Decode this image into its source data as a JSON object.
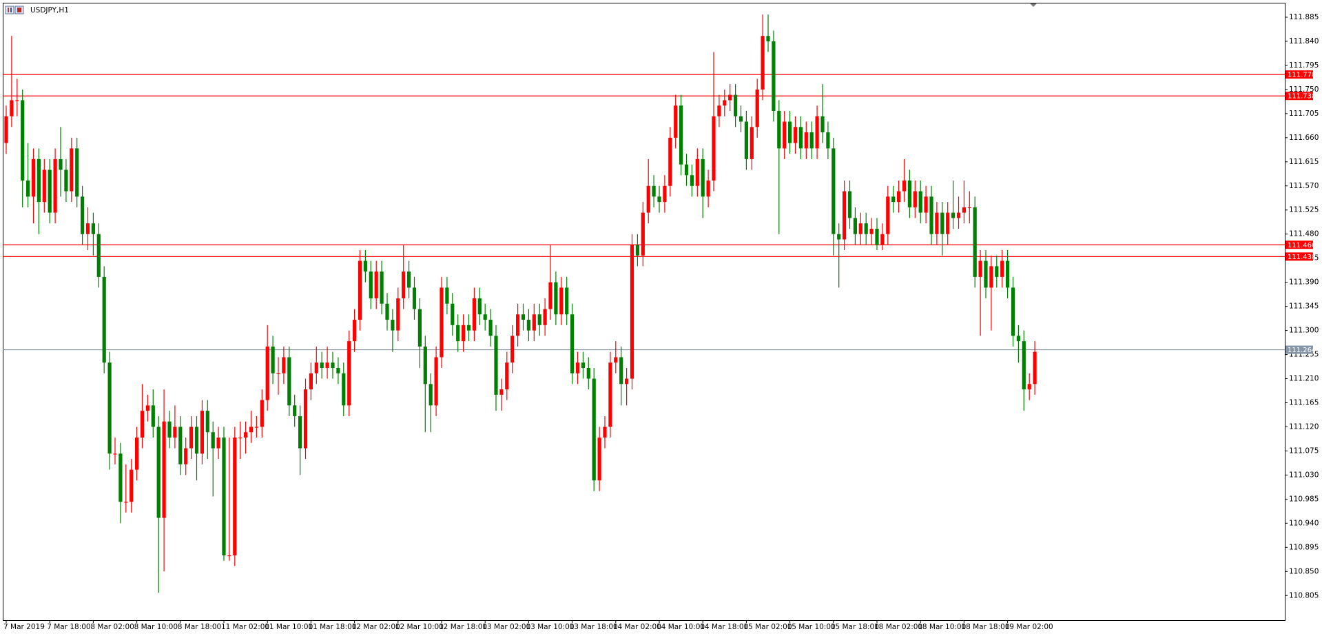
{
  "chart_data": {
    "type": "candlestick",
    "title": "USDJPY,H1",
    "up_color": "#ff0000",
    "down_color": "#008000",
    "level_color": "#ff0000",
    "current_color": "#8395a7",
    "ylim": [
      110.759,
      111.912
    ],
    "yticks": [
      111.885,
      {
        "value": 111.84,
        "label": "111.840"
      },
      111.795,
      {
        "value": 111.75,
        "label": "111.750"
      },
      111.705,
      {
        "value": 111.66,
        "label": "111.660"
      },
      111.615,
      {
        "value": 111.57,
        "label": "111.570"
      },
      111.525,
      {
        "value": 111.48,
        "label": "111.480"
      },
      111.435,
      {
        "value": 111.39,
        "label": "111.390"
      },
      111.345,
      {
        "value": 111.3,
        "label": "111.300"
      },
      111.255,
      {
        "value": 111.21,
        "label": "111.210"
      },
      111.165,
      {
        "value": 111.12,
        "label": "111.120"
      },
      111.075,
      {
        "value": 111.03,
        "label": "111.030"
      },
      110.985,
      {
        "value": 110.94,
        "label": "110.940"
      },
      110.895,
      {
        "value": 110.85,
        "label": "110.850"
      },
      110.805
    ],
    "levels": [
      {
        "value": 111.778
      },
      {
        "value": 111.738
      },
      {
        "value": 111.46,
        "label": "111.460"
      },
      {
        "value": 111.438
      }
    ],
    "current_price": {
      "value": 111.264
    },
    "categories": [
      "7 Mar 2019",
      null,
      null,
      null,
      null,
      null,
      null,
      null,
      "7 Mar 18:00",
      null,
      null,
      null,
      null,
      null,
      null,
      null,
      "8 Mar 02:00",
      null,
      null,
      null,
      null,
      null,
      null,
      null,
      "8 Mar 10:00",
      null,
      null,
      null,
      null,
      null,
      null,
      null,
      "8 Mar 18:00",
      null,
      null,
      null,
      null,
      null,
      null,
      null,
      "11 Mar 02:00",
      null,
      null,
      null,
      null,
      null,
      null,
      null,
      "11 Mar 10:00",
      null,
      null,
      null,
      null,
      null,
      null,
      null,
      "11 Mar 18:00",
      null,
      null,
      null,
      null,
      null,
      null,
      null,
      "12 Mar 02:00",
      null,
      null,
      null,
      null,
      null,
      null,
      null,
      "12 Mar 10:00",
      null,
      null,
      null,
      null,
      null,
      null,
      null,
      "12 Mar 18:00",
      null,
      null,
      null,
      null,
      null,
      null,
      null,
      "13 Mar 02:00",
      null,
      null,
      null,
      null,
      null,
      null,
      null,
      "13 Mar 10:00",
      null,
      null,
      null,
      null,
      null,
      null,
      null,
      "13 Mar 18:00",
      null,
      null,
      null,
      null,
      null,
      null,
      null,
      "14 Mar 02:00",
      null,
      null,
      null,
      null,
      null,
      null,
      null,
      "14 Mar 10:00",
      null,
      null,
      null,
      null,
      null,
      null,
      null,
      "14 Mar 18:00",
      null,
      null,
      null,
      null,
      null,
      null,
      null,
      "15 Mar 02:00",
      null,
      null,
      null,
      null,
      null,
      null,
      null,
      "15 Mar 10:00",
      null,
      null,
      null,
      null,
      null,
      null,
      null,
      "15 Mar 18:00",
      null,
      null,
      null,
      null,
      null,
      null,
      null,
      "18 Mar 02:00",
      null,
      null,
      null,
      null,
      null,
      null,
      null,
      "18 Mar 10:00",
      null,
      null,
      null,
      null,
      null,
      null,
      null,
      "18 Mar 18:00",
      null,
      null,
      null,
      null,
      null,
      null,
      null,
      "19 Mar 02:00",
      null,
      null,
      null,
      null,
      null
    ],
    "open": [
      111.65,
      111.7,
      111.73,
      111.73,
      111.58,
      111.55,
      111.62,
      111.54,
      111.6,
      111.52,
      111.62,
      111.6,
      111.56,
      111.64,
      111.55,
      111.48,
      111.5,
      111.48,
      111.4,
      111.24,
      111.07,
      111.07,
      110.98,
      110.98,
      111.04,
      111.1,
      111.15,
      111.16,
      111.12,
      110.95,
      111.13,
      111.1,
      111.12,
      111.05,
      111.08,
      111.12,
      111.07,
      111.15,
      111.11,
      111.08,
      111.1,
      110.88,
      110.88,
      111.1,
      111.1,
      111.11,
      111.12,
      111.12,
      111.17,
      111.27,
      111.22,
      111.22,
      111.25,
      111.16,
      111.14,
      111.08,
      111.19,
      111.22,
      111.24,
      111.23,
      111.24,
      111.23,
      111.22,
      111.16,
      111.28,
      111.32,
      111.43,
      111.41,
      111.36,
      111.41,
      111.35,
      111.32,
      111.3,
      111.36,
      111.41,
      111.38,
      111.34,
      111.27,
      111.2,
      111.16,
      111.25,
      111.38,
      111.35,
      111.31,
      111.28,
      111.31,
      111.3,
      111.36,
      111.33,
      111.32,
      111.29,
      111.18,
      111.19,
      111.24,
      111.29,
      111.33,
      111.32,
      111.3,
      111.33,
      111.31,
      111.34,
      111.39,
      111.33,
      111.38,
      111.33,
      111.22,
      111.24,
      111.23,
      111.21,
      111.02,
      111.1,
      111.12,
      111.24,
      111.25,
      111.2,
      111.21,
      111.46,
      111.44,
      111.52,
      111.57,
      111.55,
      111.54,
      111.57,
      111.66,
      111.72,
      111.61,
      111.59,
      111.57,
      111.62,
      111.55,
      111.58,
      111.7,
      111.72,
      111.73,
      111.74,
      111.7,
      111.69,
      111.62,
      111.68,
      111.75,
      111.85,
      111.84,
      111.71,
      111.64,
      111.69,
      111.65,
      111.68,
      111.64,
      111.67,
      111.64,
      111.7,
      111.67,
      111.64,
      111.48,
      111.47,
      111.56,
      111.51,
      111.48,
      111.5,
      111.48,
      111.49,
      111.46,
      111.48,
      111.55,
      111.54,
      111.56,
      111.58,
      111.53,
      111.56,
      111.52,
      111.55,
      111.48,
      111.52,
      111.48,
      111.52,
      111.51,
      111.52,
      111.53,
      111.53,
      111.4,
      111.43,
      111.38,
      111.42,
      111.4,
      111.43,
      111.38,
      111.29,
      111.28,
      111.19,
      111.2
    ],
    "high": [
      111.72,
      111.85,
      111.77,
      111.75,
      111.65,
      111.64,
      111.64,
      111.62,
      111.62,
      111.64,
      111.68,
      111.62,
      111.66,
      111.66,
      111.57,
      111.53,
      111.52,
      111.5,
      111.42,
      111.26,
      111.1,
      111.09,
      111.05,
      111.06,
      111.12,
      111.2,
      111.18,
      111.19,
      111.14,
      111.19,
      111.15,
      111.16,
      111.14,
      111.1,
      111.14,
      111.14,
      111.17,
      111.17,
      111.13,
      111.12,
      111.12,
      111.1,
      111.12,
      111.13,
      111.13,
      111.15,
      111.14,
      111.19,
      111.31,
      111.29,
      111.25,
      111.27,
      111.27,
      111.18,
      111.16,
      111.21,
      111.24,
      111.27,
      111.26,
      111.27,
      111.26,
      111.25,
      111.24,
      111.3,
      111.34,
      111.45,
      111.45,
      111.43,
      111.43,
      111.43,
      111.37,
      111.34,
      111.38,
      111.46,
      111.43,
      111.4,
      111.36,
      111.29,
      111.22,
      111.27,
      111.4,
      111.4,
      111.37,
      111.33,
      111.33,
      111.33,
      111.38,
      111.38,
      111.35,
      111.34,
      111.31,
      111.21,
      111.26,
      111.31,
      111.35,
      111.35,
      111.34,
      111.35,
      111.35,
      111.36,
      111.46,
      111.41,
      111.4,
      111.4,
      111.35,
      111.26,
      111.26,
      111.25,
      111.23,
      111.12,
      111.14,
      111.26,
      111.28,
      111.27,
      111.23,
      111.48,
      111.48,
      111.54,
      111.62,
      111.59,
      111.57,
      111.59,
      111.68,
      111.74,
      111.74,
      111.63,
      111.61,
      111.64,
      111.64,
      111.6,
      111.82,
      111.74,
      111.75,
      111.76,
      111.76,
      111.72,
      111.71,
      111.7,
      111.77,
      111.89,
      111.89,
      111.86,
      111.73,
      111.71,
      111.71,
      111.7,
      111.7,
      111.69,
      111.69,
      111.72,
      111.76,
      111.69,
      111.66,
      111.5,
      111.58,
      111.58,
      111.53,
      111.52,
      111.52,
      111.51,
      111.51,
      111.5,
      111.57,
      111.57,
      111.58,
      111.62,
      111.6,
      111.58,
      111.58,
      111.57,
      111.57,
      111.54,
      111.54,
      111.54,
      111.58,
      111.55,
      111.58,
      111.56,
      111.55,
      111.45,
      111.45,
      111.44,
      111.44,
      111.45,
      111.45,
      111.4,
      111.31,
      111.3,
      111.22,
      111.28
    ],
    "low": [
      111.63,
      111.68,
      111.7,
      111.53,
      111.53,
      111.5,
      111.48,
      111.52,
      111.5,
      111.5,
      111.55,
      111.54,
      111.54,
      111.53,
      111.46,
      111.45,
      111.44,
      111.38,
      111.22,
      111.04,
      111.05,
      110.94,
      110.96,
      110.96,
      111.02,
      111.08,
      111.13,
      111.1,
      110.81,
      110.85,
      111.08,
      111.08,
      111.03,
      111.03,
      111.06,
      111.02,
      111.05,
      111.06,
      110.99,
      111.06,
      110.87,
      110.87,
      110.86,
      111.06,
      111.07,
      111.09,
      111.1,
      111.1,
      111.15,
      111.2,
      111.18,
      111.2,
      111.14,
      111.12,
      111.03,
      111.06,
      111.17,
      111.2,
      111.21,
      111.21,
      111.21,
      111.2,
      111.14,
      111.14,
      111.26,
      111.3,
      111.39,
      111.34,
      111.34,
      111.33,
      111.3,
      111.26,
      111.28,
      111.34,
      111.36,
      111.32,
      111.23,
      111.11,
      111.11,
      111.14,
      111.23,
      111.33,
      111.29,
      111.26,
      111.26,
      111.28,
      111.28,
      111.31,
      111.3,
      111.27,
      111.15,
      111.15,
      111.17,
      111.22,
      111.27,
      111.3,
      111.28,
      111.28,
      111.29,
      111.29,
      111.32,
      111.31,
      111.31,
      111.31,
      111.2,
      111.2,
      111.21,
      111.19,
      111.0,
      111.0,
      111.08,
      111.1,
      111.22,
      111.16,
      111.16,
      111.19,
      111.42,
      111.42,
      111.5,
      111.53,
      111.52,
      111.52,
      111.55,
      111.64,
      111.59,
      111.57,
      111.55,
      111.55,
      111.51,
      111.53,
      111.56,
      111.68,
      111.7,
      111.71,
      111.68,
      111.67,
      111.6,
      111.6,
      111.66,
      111.73,
      111.82,
      111.69,
      111.48,
      111.62,
      111.63,
      111.63,
      111.62,
      111.62,
      111.62,
      111.62,
      111.65,
      111.62,
      111.44,
      111.38,
      111.45,
      111.49,
      111.46,
      111.46,
      111.46,
      111.46,
      111.45,
      111.45,
      111.46,
      111.52,
      111.52,
      111.54,
      111.51,
      111.51,
      111.5,
      111.5,
      111.46,
      111.46,
      111.44,
      111.46,
      111.49,
      111.49,
      111.5,
      111.5,
      111.38,
      111.29,
      111.36,
      111.3,
      111.38,
      111.38,
      111.36,
      111.27,
      111.24,
      111.15,
      111.17,
      111.18
    ],
    "close": [
      111.7,
      111.73,
      111.73,
      111.58,
      111.55,
      111.62,
      111.54,
      111.6,
      111.52,
      111.62,
      111.6,
      111.56,
      111.64,
      111.55,
      111.48,
      111.5,
      111.48,
      111.4,
      111.24,
      111.07,
      111.07,
      110.98,
      110.98,
      111.04,
      111.1,
      111.15,
      111.16,
      111.12,
      110.95,
      111.13,
      111.1,
      111.12,
      111.05,
      111.08,
      111.12,
      111.07,
      111.15,
      111.11,
      111.08,
      111.1,
      110.88,
      110.88,
      111.1,
      111.1,
      111.11,
      111.12,
      111.12,
      111.17,
      111.27,
      111.22,
      111.22,
      111.25,
      111.16,
      111.14,
      111.08,
      111.19,
      111.22,
      111.24,
      111.23,
      111.24,
      111.23,
      111.22,
      111.16,
      111.28,
      111.32,
      111.43,
      111.41,
      111.36,
      111.41,
      111.35,
      111.32,
      111.3,
      111.36,
      111.41,
      111.38,
      111.34,
      111.27,
      111.2,
      111.16,
      111.25,
      111.38,
      111.35,
      111.31,
      111.28,
      111.31,
      111.3,
      111.36,
      111.33,
      111.32,
      111.29,
      111.18,
      111.19,
      111.24,
      111.29,
      111.33,
      111.32,
      111.3,
      111.33,
      111.31,
      111.34,
      111.39,
      111.33,
      111.38,
      111.33,
      111.22,
      111.24,
      111.23,
      111.21,
      111.02,
      111.1,
      111.12,
      111.24,
      111.25,
      111.2,
      111.21,
      111.46,
      111.44,
      111.52,
      111.57,
      111.55,
      111.54,
      111.57,
      111.66,
      111.72,
      111.61,
      111.59,
      111.57,
      111.62,
      111.55,
      111.58,
      111.7,
      111.72,
      111.73,
      111.74,
      111.7,
      111.69,
      111.62,
      111.68,
      111.75,
      111.85,
      111.84,
      111.71,
      111.64,
      111.69,
      111.65,
      111.68,
      111.64,
      111.67,
      111.64,
      111.7,
      111.67,
      111.64,
      111.48,
      111.47,
      111.56,
      111.51,
      111.48,
      111.5,
      111.48,
      111.49,
      111.46,
      111.48,
      111.55,
      111.54,
      111.56,
      111.58,
      111.53,
      111.56,
      111.52,
      111.55,
      111.48,
      111.52,
      111.48,
      111.52,
      111.51,
      111.52,
      111.53,
      111.53,
      111.4,
      111.43,
      111.38,
      111.42,
      111.4,
      111.43,
      111.38,
      111.29,
      111.28,
      111.19,
      111.2,
      111.26
    ]
  }
}
